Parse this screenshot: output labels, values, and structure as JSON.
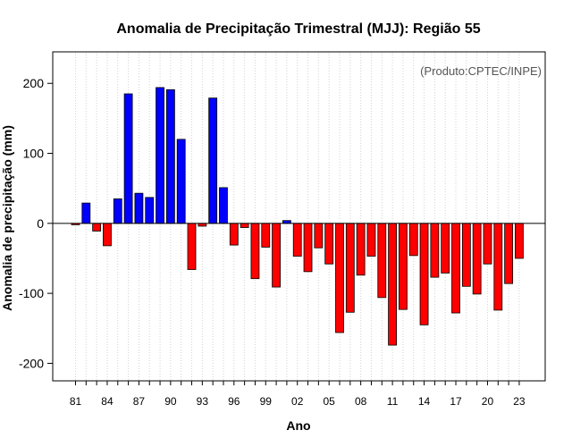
{
  "chart_data": {
    "type": "bar",
    "title": "Anomalia de Precipitação Trimestral (MJJ): Região 55",
    "xlabel": "Ano",
    "ylabel": "Anomalia de precipitação (mm)",
    "annotation": "(Produto:CPTEC/INPE)",
    "ylim": [
      -225,
      245
    ],
    "yticks": [
      -200,
      -100,
      0,
      100,
      200
    ],
    "xtick_labels": [
      "81",
      "84",
      "87",
      "90",
      "93",
      "96",
      "99",
      "02",
      "05",
      "08",
      "11",
      "14",
      "17",
      "20",
      "23"
    ],
    "xtick_years": [
      1981,
      1984,
      1987,
      1990,
      1993,
      1996,
      1999,
      2002,
      2005,
      2008,
      2011,
      2014,
      2017,
      2020,
      2023
    ],
    "grid": "vertical dotted",
    "positive_color": "#0000ff",
    "negative_color": "#ff0000",
    "years": [
      1981,
      1982,
      1983,
      1984,
      1985,
      1986,
      1987,
      1988,
      1989,
      1990,
      1991,
      1992,
      1993,
      1994,
      1995,
      1996,
      1997,
      1998,
      1999,
      2000,
      2001,
      2002,
      2003,
      2004,
      2005,
      2006,
      2007,
      2008,
      2009,
      2010,
      2011,
      2012,
      2013,
      2014,
      2015,
      2016,
      2017,
      2018,
      2019,
      2020,
      2021,
      2022,
      2023
    ],
    "values": [
      -2,
      29,
      -11,
      -32,
      35,
      185,
      43,
      37,
      194,
      191,
      120,
      -66,
      -4,
      179,
      51,
      -31,
      -6,
      -79,
      -34,
      -91,
      4,
      -47,
      -69,
      -35,
      -58,
      -156,
      -127,
      -74,
      -47,
      -106,
      -174,
      -123,
      -46,
      -145,
      -77,
      -71,
      -128,
      -90,
      -101,
      -58,
      -124,
      -86,
      -50
    ]
  }
}
